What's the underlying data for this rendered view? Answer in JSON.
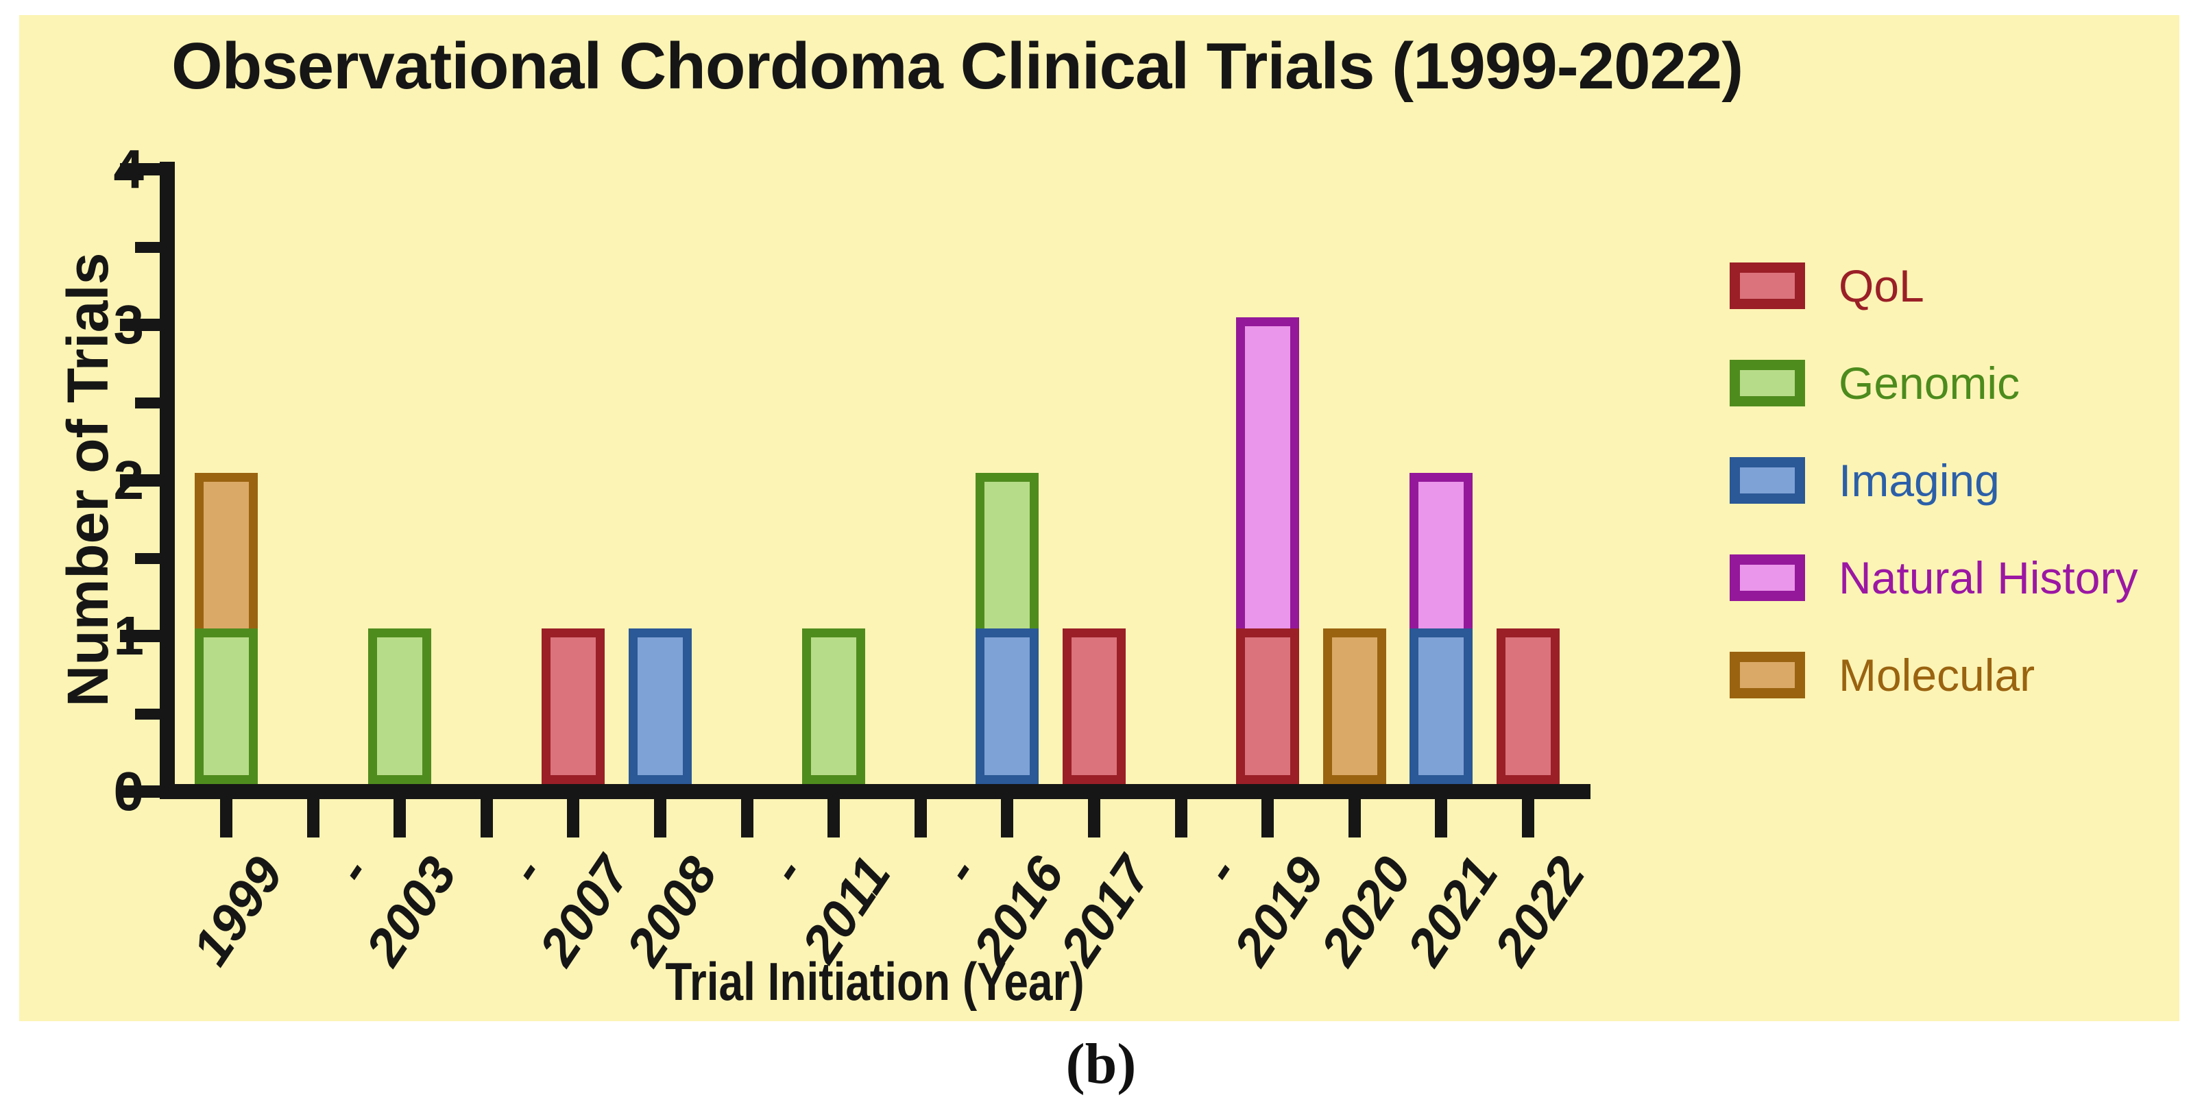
{
  "page": {
    "caption": "(b)",
    "background": "#FFFFFF",
    "panel_background": "#FCF4B4",
    "axis_color": "#161616"
  },
  "chart_data": {
    "type": "bar",
    "stacked": true,
    "title": "Observational Chordoma Clinical Trials (1999-2022)",
    "xlabel": "Trial Initiation (Year)",
    "ylabel": "Number of Trials",
    "ylim": [
      0,
      4
    ],
    "ytick_labels": [
      "0",
      "1",
      "2",
      "3",
      "4"
    ],
    "yminor_step": 0.5,
    "grid": false,
    "legend_position": "right",
    "categories": [
      "1999",
      "-",
      "2003",
      "-",
      "2007",
      "2008",
      "-",
      "2011",
      "-",
      "2016",
      "2017",
      "-",
      "2019",
      "2020",
      "2021",
      "2022"
    ],
    "series": [
      {
        "name": "QoL",
        "fill": "#DB737C",
        "edge": "#9A1F27",
        "text_color": "#9A1F27",
        "values": [
          0,
          0,
          0,
          0,
          1,
          0,
          0,
          0,
          0,
          0,
          1,
          0,
          1,
          0,
          0,
          1
        ]
      },
      {
        "name": "Genomic",
        "fill": "#B7DC89",
        "edge": "#4F8C1E",
        "text_color": "#4C8B1D",
        "values": [
          1,
          0,
          1,
          0,
          0,
          0,
          0,
          1,
          0,
          1,
          0,
          0,
          0,
          0,
          0,
          0
        ]
      },
      {
        "name": "Imaging",
        "fill": "#7FA2D6",
        "edge": "#2B5896",
        "text_color": "#2B5FA9",
        "values": [
          0,
          0,
          0,
          0,
          0,
          1,
          0,
          0,
          0,
          1,
          0,
          0,
          0,
          0,
          1,
          0
        ]
      },
      {
        "name": "Natural History",
        "fill": "#EA96EA",
        "edge": "#94189A",
        "text_color": "#9B17A4",
        "values": [
          0,
          0,
          0,
          0,
          0,
          0,
          0,
          0,
          0,
          0,
          0,
          0,
          2,
          0,
          1,
          0
        ]
      },
      {
        "name": "Molecular",
        "fill": "#DBA967",
        "edge": "#9A6310",
        "text_color": "#9A6310",
        "values": [
          1,
          0,
          0,
          0,
          0,
          0,
          0,
          0,
          0,
          0,
          0,
          0,
          0,
          1,
          0,
          0
        ]
      }
    ],
    "bars": [
      {
        "year": "1999",
        "total": 2,
        "segments": [
          {
            "series": "Genomic",
            "value": 1
          },
          {
            "series": "Molecular",
            "value": 1
          }
        ]
      },
      {
        "year": "-",
        "total": 0,
        "segments": []
      },
      {
        "year": "2003",
        "total": 1,
        "segments": [
          {
            "series": "Genomic",
            "value": 1
          }
        ]
      },
      {
        "year": "-",
        "total": 0,
        "segments": []
      },
      {
        "year": "2007",
        "total": 1,
        "segments": [
          {
            "series": "QoL",
            "value": 1
          }
        ]
      },
      {
        "year": "2008",
        "total": 1,
        "segments": [
          {
            "series": "Imaging",
            "value": 1
          }
        ]
      },
      {
        "year": "-",
        "total": 0,
        "segments": []
      },
      {
        "year": "2011",
        "total": 1,
        "segments": [
          {
            "series": "Genomic",
            "value": 1
          }
        ]
      },
      {
        "year": "-",
        "total": 0,
        "segments": []
      },
      {
        "year": "2016",
        "total": 2,
        "segments": [
          {
            "series": "Imaging",
            "value": 1
          },
          {
            "series": "Genomic",
            "value": 1
          }
        ]
      },
      {
        "year": "2017",
        "total": 1,
        "segments": [
          {
            "series": "QoL",
            "value": 1
          }
        ]
      },
      {
        "year": "-",
        "total": 0,
        "segments": []
      },
      {
        "year": "2019",
        "total": 3,
        "segments": [
          {
            "series": "QoL",
            "value": 1
          },
          {
            "series": "Natural History",
            "value": 2
          }
        ]
      },
      {
        "year": "2020",
        "total": 1,
        "segments": [
          {
            "series": "Molecular",
            "value": 1
          }
        ]
      },
      {
        "year": "2021",
        "total": 2,
        "segments": [
          {
            "series": "Imaging",
            "value": 1
          },
          {
            "series": "Natural History",
            "value": 1
          }
        ]
      },
      {
        "year": "2022",
        "total": 1,
        "segments": [
          {
            "series": "QoL",
            "value": 1
          }
        ]
      }
    ]
  }
}
